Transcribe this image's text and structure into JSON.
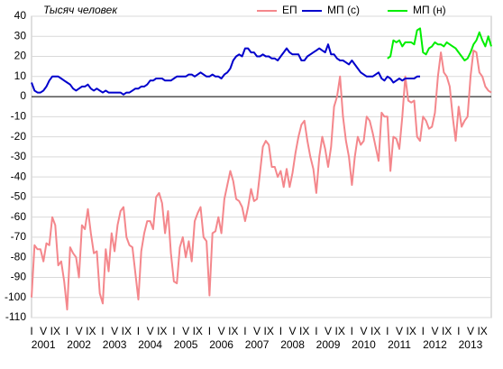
{
  "chart_data": {
    "type": "line",
    "title": "Тысяч человек",
    "categories": [
      "I",
      null,
      null,
      null,
      "V",
      null,
      null,
      null,
      "IX",
      null,
      null,
      null,
      "I",
      null,
      null,
      null,
      "V",
      null,
      null,
      null,
      "IX",
      null,
      null,
      null,
      "I",
      null,
      null,
      null,
      "V",
      null,
      null,
      null,
      "IX",
      null,
      null,
      null,
      "I",
      null,
      null,
      null,
      "V",
      null,
      null,
      null,
      "IX",
      null,
      null,
      null,
      "I",
      null,
      null,
      null,
      "V",
      null,
      null,
      null,
      "IX",
      null,
      null,
      null,
      "I",
      null,
      null,
      null,
      "V",
      null,
      null,
      null,
      "IX",
      null,
      null,
      null,
      "I",
      null,
      null,
      null,
      "V",
      null,
      null,
      null,
      "IX",
      null,
      null,
      null,
      "I",
      null,
      null,
      null,
      "V",
      null,
      null,
      null,
      "IX",
      null,
      null,
      null,
      "I",
      null,
      null,
      null,
      "V",
      null,
      null,
      null,
      "IX",
      null,
      null,
      null,
      "I",
      null,
      null,
      null,
      "V",
      null,
      null,
      null,
      "IX",
      null,
      null,
      null,
      "I",
      null,
      null,
      null,
      "V",
      null,
      null,
      null,
      "IX",
      null,
      null,
      null,
      "I",
      null,
      null,
      null,
      "V",
      null,
      null,
      null,
      "IX",
      null,
      null,
      null,
      "I",
      null,
      null,
      null,
      "V",
      null,
      null,
      null,
      "IX",
      null,
      null,
      null
    ],
    "year_labels": [
      "2001",
      "2002",
      "2003",
      "2004",
      "2005",
      "2006",
      "2007",
      "2008",
      "2009",
      "2010",
      "2011",
      "2012",
      "2013"
    ],
    "series": [
      {
        "name": "ЕП",
        "color": "#f4878c",
        "values": [
          -100,
          -74,
          -76,
          -76,
          -82,
          -73,
          -74,
          -60,
          -64,
          -84,
          -82,
          -92,
          -106,
          -75,
          -78,
          -80,
          -90,
          -64,
          -66,
          -56,
          -68,
          -78,
          -77,
          -98,
          -103,
          -76,
          -87,
          -68,
          -77,
          -64,
          -57,
          -55,
          -70,
          -74,
          -75,
          -88,
          -101,
          -77,
          -68,
          -62,
          -62,
          -66,
          -50,
          -48,
          -53,
          -68,
          -57,
          -78,
          -92,
          -93,
          -75,
          -70,
          -80,
          -72,
          -82,
          -62,
          -58,
          -55,
          -70,
          -72,
          -99,
          -68,
          -67,
          -60,
          -68,
          -51,
          -44,
          -37,
          -42,
          -51,
          -52,
          -55,
          -62,
          -55,
          -46,
          -52,
          -51,
          -38,
          -25,
          -22,
          -24,
          -35,
          -35,
          -40,
          -37,
          -45,
          -36,
          -45,
          -38,
          -28,
          -20,
          -14,
          -12,
          -22,
          -30,
          -36,
          -48,
          -30,
          -20,
          -26,
          -35,
          -25,
          -5,
          0,
          10,
          -10,
          -22,
          -30,
          -44,
          -30,
          -20,
          -24,
          -22,
          -10,
          -12,
          -18,
          -25,
          -32,
          -8,
          -10,
          -10,
          -37,
          -20,
          -21,
          -26,
          -10,
          10,
          -2,
          -3,
          -2,
          -20,
          -22,
          -10,
          -12,
          -16,
          -15,
          -8,
          10,
          22,
          12,
          10,
          5,
          -10,
          -22,
          -5,
          -15,
          -12,
          -10,
          10,
          23,
          22,
          12,
          10,
          5,
          3,
          2
        ]
      },
      {
        "name": "МП (с)",
        "color": "#0000cc",
        "values": [
          7,
          3,
          2,
          2,
          3,
          5,
          8,
          10,
          10,
          10,
          9,
          8,
          7,
          6,
          4,
          3,
          4,
          5,
          5,
          6,
          4,
          3,
          4,
          3,
          2,
          3,
          2,
          2,
          2,
          2,
          2,
          1,
          2,
          2,
          3,
          4,
          4,
          5,
          5,
          6,
          8,
          8,
          9,
          9,
          9,
          8,
          8,
          8,
          9,
          10,
          10,
          10,
          10,
          11,
          11,
          10,
          11,
          12,
          11,
          10,
          10,
          11,
          10,
          10,
          9,
          11,
          12,
          14,
          18,
          20,
          21,
          20,
          24,
          24,
          22,
          22,
          20,
          20,
          21,
          20,
          20,
          19,
          19,
          18,
          20,
          22,
          24,
          22,
          21,
          21,
          21,
          18,
          18,
          20,
          21,
          22,
          23,
          24,
          23,
          22,
          26,
          21,
          21,
          19,
          18,
          18,
          17,
          16,
          18,
          16,
          14,
          12,
          11,
          10,
          10,
          10,
          11,
          12,
          9,
          8,
          10,
          9,
          7,
          8,
          9,
          8,
          9,
          9,
          9,
          9,
          10,
          10,
          null,
          null,
          null,
          null,
          null,
          null,
          null,
          null,
          null,
          null,
          null,
          null,
          null,
          null,
          null,
          null,
          null,
          null,
          null,
          null,
          null,
          null,
          null,
          null
        ]
      },
      {
        "name": "МП (н)",
        "color": "#00ee00",
        "values": [
          null,
          null,
          null,
          null,
          null,
          null,
          null,
          null,
          null,
          null,
          null,
          null,
          null,
          null,
          null,
          null,
          null,
          null,
          null,
          null,
          null,
          null,
          null,
          null,
          null,
          null,
          null,
          null,
          null,
          null,
          null,
          null,
          null,
          null,
          null,
          null,
          null,
          null,
          null,
          null,
          null,
          null,
          null,
          null,
          null,
          null,
          null,
          null,
          null,
          null,
          null,
          null,
          null,
          null,
          null,
          null,
          null,
          null,
          null,
          null,
          null,
          null,
          null,
          null,
          null,
          null,
          null,
          null,
          null,
          null,
          null,
          null,
          null,
          null,
          null,
          null,
          null,
          null,
          null,
          null,
          null,
          null,
          null,
          null,
          null,
          null,
          null,
          null,
          null,
          null,
          null,
          null,
          null,
          null,
          null,
          null,
          null,
          null,
          null,
          null,
          null,
          null,
          null,
          null,
          null,
          null,
          null,
          null,
          null,
          null,
          null,
          null,
          null,
          null,
          null,
          null,
          null,
          null,
          null,
          null,
          19,
          20,
          28,
          27,
          28,
          25,
          27,
          27,
          27,
          26,
          33,
          34,
          22,
          21,
          24,
          25,
          27,
          26,
          26,
          25,
          27,
          26,
          25,
          24,
          22,
          20,
          18,
          19,
          22,
          26,
          28,
          32,
          28,
          25,
          30,
          25
        ]
      }
    ],
    "ylim": [
      -110,
      40
    ],
    "yticks": [
      -110,
      -100,
      -90,
      -80,
      -70,
      -60,
      -50,
      -40,
      -30,
      -20,
      -10,
      0,
      10,
      20,
      30,
      40
    ],
    "grid": true
  }
}
